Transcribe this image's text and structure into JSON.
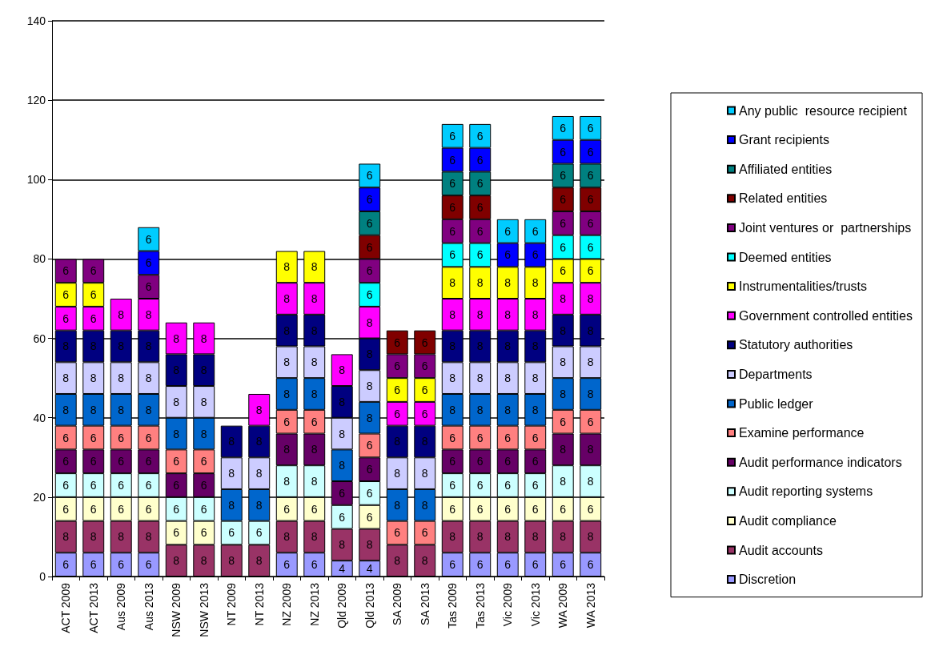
{
  "chart_data": {
    "type": "bar",
    "stacked": true,
    "data_labels": true,
    "grid": "y",
    "legend": "right",
    "categories": [
      "ACT 2009",
      "ACT 2013",
      "Aus 2009",
      "Aus 2013",
      "NSW 2009",
      "NSW 2013",
      "NT 2009",
      "NT 2013",
      "NZ 2009",
      "NZ 2013",
      "Qld 2009",
      "Qld 2013",
      "SA 2009",
      "SA 2013",
      "Tas 2009",
      "Tas 2013",
      "Vic 2009",
      "Vic 2013",
      "WA 2009",
      "WA 2013"
    ],
    "ylim": [
      0,
      140
    ],
    "yticks": [
      0,
      20,
      40,
      60,
      80,
      100,
      120,
      140
    ],
    "series": [
      {
        "name": "Discretion",
        "color": "#9999ff",
        "values": [
          6,
          6,
          6,
          6,
          null,
          null,
          null,
          null,
          6,
          6,
          4,
          4,
          null,
          null,
          6,
          6,
          6,
          6,
          6,
          6
        ]
      },
      {
        "name": "Audit accounts",
        "color": "#993366",
        "values": [
          8,
          8,
          8,
          8,
          8,
          8,
          8,
          8,
          8,
          8,
          8,
          8,
          8,
          8,
          8,
          8,
          8,
          8,
          8,
          8
        ]
      },
      {
        "name": "Audit compliance",
        "color": "#ffffcc",
        "values": [
          6,
          6,
          6,
          6,
          6,
          6,
          null,
          null,
          6,
          6,
          null,
          6,
          null,
          null,
          6,
          6,
          6,
          6,
          6,
          6
        ]
      },
      {
        "name": "Audit reporting systems",
        "color": "#ccffff",
        "values": [
          6,
          6,
          6,
          6,
          6,
          6,
          6,
          6,
          8,
          8,
          6,
          6,
          null,
          null,
          6,
          6,
          6,
          6,
          8,
          8
        ]
      },
      {
        "name": "Audit performance indicators",
        "color": "#660066",
        "values": [
          6,
          6,
          6,
          6,
          6,
          6,
          null,
          null,
          8,
          8,
          6,
          6,
          null,
          null,
          6,
          6,
          6,
          6,
          8,
          8
        ]
      },
      {
        "name": "Examine performance",
        "color": "#ff8080",
        "values": [
          6,
          6,
          6,
          6,
          6,
          6,
          null,
          null,
          6,
          6,
          null,
          6,
          6,
          6,
          6,
          6,
          6,
          6,
          6,
          6
        ]
      },
      {
        "name": "Public ledger",
        "color": "#0066cc",
        "values": [
          8,
          8,
          8,
          8,
          8,
          8,
          8,
          8,
          8,
          8,
          8,
          8,
          8,
          8,
          8,
          8,
          8,
          8,
          8,
          8
        ]
      },
      {
        "name": "Departments",
        "color": "#ccccff",
        "values": [
          8,
          8,
          8,
          8,
          8,
          8,
          8,
          8,
          8,
          8,
          8,
          8,
          8,
          8,
          8,
          8,
          8,
          8,
          8,
          8
        ]
      },
      {
        "name": "Statutory authorities",
        "color": "#000080",
        "values": [
          8,
          8,
          8,
          8,
          8,
          8,
          8,
          8,
          8,
          8,
          8,
          8,
          8,
          8,
          8,
          8,
          8,
          8,
          8,
          8
        ]
      },
      {
        "name": "Government controlled entities",
        "color": "#ff00ff",
        "values": [
          6,
          6,
          8,
          8,
          8,
          8,
          null,
          8,
          8,
          8,
          8,
          8,
          6,
          6,
          8,
          8,
          8,
          8,
          8,
          8
        ]
      },
      {
        "name": "Instrumentalities/trusts",
        "color": "#ffff00",
        "values": [
          6,
          6,
          null,
          null,
          null,
          null,
          null,
          null,
          8,
          8,
          null,
          null,
          6,
          6,
          8,
          8,
          8,
          8,
          6,
          6
        ]
      },
      {
        "name": "Deemed entities",
        "color": "#00ffff",
        "values": [
          null,
          null,
          null,
          null,
          null,
          null,
          null,
          null,
          null,
          null,
          null,
          6,
          null,
          null,
          6,
          6,
          null,
          null,
          6,
          6
        ]
      },
      {
        "name": "Joint ventures or  partnerships",
        "color": "#800080",
        "values": [
          6,
          6,
          null,
          6,
          null,
          null,
          null,
          null,
          null,
          null,
          null,
          6,
          6,
          6,
          6,
          6,
          null,
          null,
          6,
          6
        ]
      },
      {
        "name": "Related entities",
        "color": "#800000",
        "values": [
          null,
          null,
          null,
          null,
          null,
          null,
          null,
          null,
          null,
          null,
          null,
          6,
          6,
          6,
          6,
          6,
          null,
          null,
          6,
          6
        ]
      },
      {
        "name": "Affiliated entities",
        "color": "#008080",
        "values": [
          null,
          null,
          null,
          null,
          null,
          null,
          null,
          null,
          null,
          null,
          null,
          6,
          null,
          null,
          6,
          6,
          null,
          null,
          6,
          6
        ]
      },
      {
        "name": "Grant recipients",
        "color": "#0000ff",
        "values": [
          null,
          null,
          null,
          6,
          null,
          null,
          null,
          null,
          null,
          null,
          null,
          6,
          null,
          null,
          6,
          6,
          6,
          6,
          6,
          6
        ]
      },
      {
        "name": "Any public  resource recipient",
        "color": "#00ccff",
        "values": [
          null,
          null,
          null,
          6,
          null,
          null,
          null,
          null,
          null,
          null,
          null,
          6,
          null,
          null,
          6,
          6,
          6,
          6,
          6,
          6
        ]
      }
    ]
  }
}
